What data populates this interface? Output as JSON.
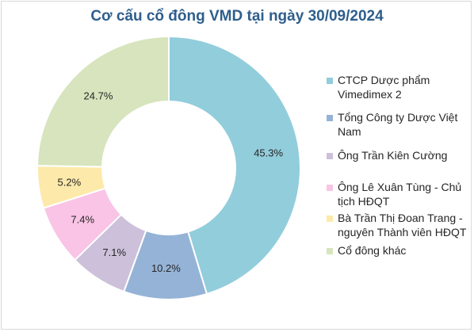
{
  "chart_data": {
    "type": "pie",
    "title": "Cơ cấu cổ đông VMD tại ngày 30/09/2024",
    "donut": true,
    "legend_position": "right",
    "categories": [
      "CTCP Dược phẩm Vimedimex 2",
      "Tổng Công ty Dược Việt Nam",
      "Ông Trần Kiên Cường",
      "Ông Lê Xuân Tùng - Chủ tịch HĐQT",
      "Bà Trần Thị Đoan Trang - nguyên Thành viên HĐQT",
      "Cổ đông khác"
    ],
    "legend_lines": [
      [
        "CTCP Dược phẩm",
        "Vimedimex 2"
      ],
      [
        "Tổng Công ty Dược Việt",
        "Nam"
      ],
      [
        "Ông Trần Kiên Cường"
      ],
      [
        "Ông Lê Xuân Tùng - Chủ",
        "tịch HĐQT"
      ],
      [
        "Bà Trần Thị Đoan Trang -",
        "nguyên Thành viên HĐQT"
      ],
      [
        "Cổ đông khác"
      ]
    ],
    "values": [
      45.3,
      10.2,
      7.1,
      7.4,
      5.2,
      24.7
    ],
    "data_labels": [
      "45.3%",
      "10.2%",
      "7.1%",
      "7.4%",
      "5.2%",
      "24.7%"
    ],
    "colors": [
      "#92cddc",
      "#95b3d7",
      "#ccc0da",
      "#f9c4e5",
      "#fde9a9",
      "#d7e4bd"
    ]
  }
}
